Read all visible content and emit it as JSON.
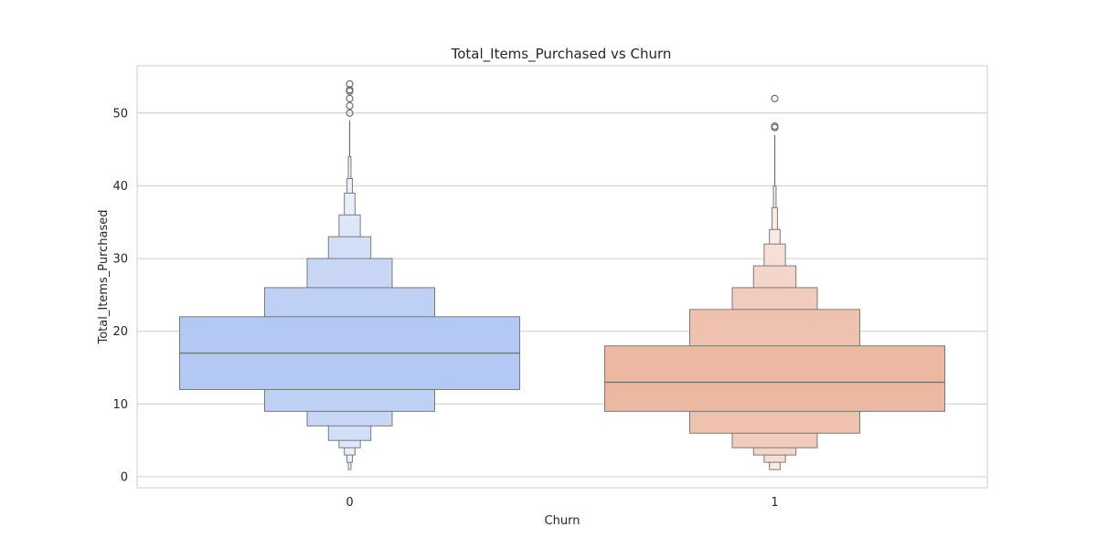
{
  "chart_data": {
    "type": "boxen",
    "title": "Total_Items_Purchased vs Churn",
    "xlabel": "Churn",
    "ylabel": "Total_Items_Purchased",
    "ylim": [
      -1.5,
      56.5
    ],
    "yticks": [
      0,
      10,
      20,
      30,
      40,
      50
    ],
    "grid": true,
    "categories": [
      "0",
      "1"
    ],
    "series": [
      {
        "category": "0",
        "color": "#b3c8f2",
        "median": 17,
        "levels": [
          {
            "low": 12,
            "high": 22
          },
          {
            "low": 9,
            "high": 26
          },
          {
            "low": 7,
            "high": 30
          },
          {
            "low": 5,
            "high": 33
          },
          {
            "low": 4,
            "high": 36
          },
          {
            "low": 3,
            "high": 39
          },
          {
            "low": 2,
            "high": 41
          },
          {
            "low": 1,
            "high": 44
          }
        ],
        "whisker": [
          1,
          49
        ],
        "outliers": [
          50,
          51,
          52,
          53,
          53.2,
          54
        ]
      },
      {
        "category": "1",
        "color": "#ebb8a2",
        "median": 13,
        "levels": [
          {
            "low": 9,
            "high": 18
          },
          {
            "low": 6,
            "high": 23
          },
          {
            "low": 4,
            "high": 26
          },
          {
            "low": 3,
            "high": 29
          },
          {
            "low": 2,
            "high": 32
          },
          {
            "low": 1,
            "high": 34
          },
          {
            "low": 1,
            "high": 37
          },
          {
            "low": 1,
            "high": 40
          }
        ],
        "whisker": [
          1,
          47
        ],
        "outliers": [
          48,
          48.2,
          52
        ]
      }
    ]
  }
}
